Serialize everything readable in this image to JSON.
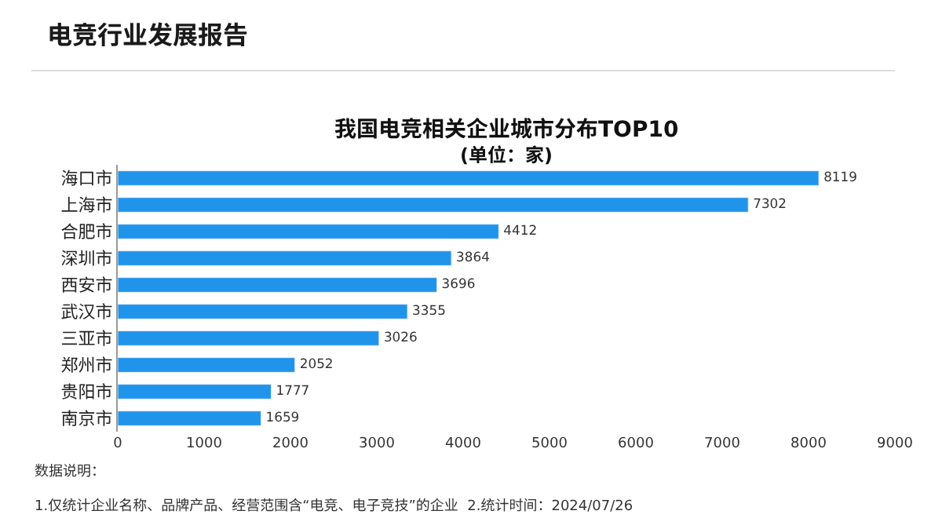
{
  "chart_data": {
    "type": "bar",
    "orientation": "horizontal",
    "title": "我国电竞相关企业城市分布TOP10",
    "subtitle": "(单位：家)",
    "categories": [
      "海口市",
      "上海市",
      "合肥市",
      "深圳市",
      "西安市",
      "武汉市",
      "三亚市",
      "郑州市",
      "贵阳市",
      "南京市"
    ],
    "values": [
      8119,
      7302,
      4412,
      3864,
      3696,
      3355,
      3026,
      2052,
      1777,
      1659
    ],
    "color": "#2094ea",
    "data_labels": true,
    "legend": false,
    "xlim": [
      0,
      9000
    ],
    "xticks": [
      0,
      1000,
      2000,
      3000,
      4000,
      5000,
      6000,
      7000,
      8000,
      9000
    ],
    "annotations": [
      "电竞行业发展报告",
      "数据说明：",
      "1.仅统计企业名称、品牌产品、经营范围含“电竞、电子竞技”的企业  2.统计时间：2024/07/26"
    ]
  }
}
